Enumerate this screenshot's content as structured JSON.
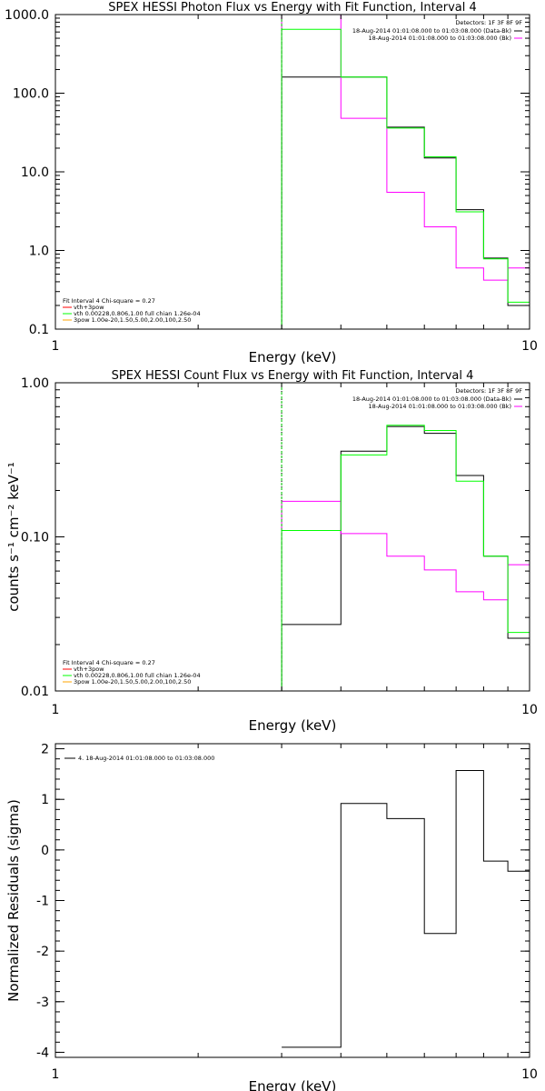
{
  "chart_data": [
    {
      "type": "line",
      "title": "SPEX HESSI Photon Flux vs Energy with Fit Function, Interval 4",
      "xlabel": "Energy (keV)",
      "ylabel": "",
      "xscale": "log",
      "yscale": "log",
      "xlim": [
        1,
        10
      ],
      "ylim": [
        0.1,
        1000
      ],
      "x_tick_labels": [
        "1",
        "10"
      ],
      "y_tick_labels": [
        "0.1",
        "1.0",
        "10.0",
        "100.0",
        "1000.0"
      ],
      "legend_header": "Detectors: 1F 3F 8F 9F",
      "legend_data": [
        {
          "label": "18-Aug-2014 01:01:08.000 to 01:03:08.000 (Data-Bk)",
          "color": "#000000"
        },
        {
          "label": "18-Aug-2014 01:01:08.000 to 01:03:08.000 (Bk)",
          "color": "#ff00ff"
        }
      ],
      "fit_legend": [
        {
          "label": "Fit Interval 4   Chi-square = 0.27",
          "color": "#000000"
        },
        {
          "label": "vth+3pow",
          "color": "#ff0000"
        },
        {
          "label": "vth 0.00228,0.806,1.00   full chian 1.26e-04",
          "color": "#00ff00"
        },
        {
          "label": "3pow 1.00e-20,1.50,5.00,2.00,100,2.50",
          "color": "#ffa500"
        }
      ],
      "energy_edges": [
        3,
        4,
        5,
        6,
        7,
        8,
        9,
        10
      ],
      "series": [
        {
          "name": "18-Aug-2014 01:01:08.000 to 01:03:08.000 (Data-Bk)",
          "color": "#000000",
          "values": [
            160,
            160,
            37,
            15,
            3.3,
            0.8,
            0.2
          ]
        },
        {
          "name": "18-Aug-2014 01:01:08.000 to 01:03:08.000 (Bk)",
          "color": "#ff00ff",
          "values": [
            1050,
            48,
            5.5,
            2.0,
            0.6,
            0.42,
            0.6
          ]
        },
        {
          "name": "vth 0.00228,0.806,1.00   full chian 1.26e-04",
          "color": "#00ff00",
          "values": [
            650,
            160,
            36,
            15.5,
            3.1,
            0.78,
            0.22
          ]
        }
      ],
      "fit_low_energy_marker": 3
    },
    {
      "type": "line",
      "title": "SPEX HESSI Count Flux vs Energy with Fit Function, Interval 4",
      "xlabel": "Energy (keV)",
      "ylabel": "counts s⁻¹ cm⁻² keV⁻¹",
      "xscale": "log",
      "yscale": "log",
      "xlim": [
        1,
        10
      ],
      "ylim": [
        0.01,
        1
      ],
      "x_tick_labels": [
        "1",
        "10"
      ],
      "y_tick_labels": [
        "0.01",
        "0.10",
        "1.00"
      ],
      "legend_header": "Detectors: 1F 3F 8F 9F",
      "legend_data": [
        {
          "label": "18-Aug-2014 01:01:08.000 to 01:03:08.000 (Data-Bk)",
          "color": "#000000"
        },
        {
          "label": "18-Aug-2014 01:01:08.000 to 01:03:08.000 (Bk)",
          "color": "#ff00ff"
        }
      ],
      "fit_legend": [
        {
          "label": "Fit Interval 4   Chi-square = 0.27",
          "color": "#000000"
        },
        {
          "label": "vth+3pow",
          "color": "#ff0000"
        },
        {
          "label": "vth 0.00228,0.806,1.00   full chian 1.26e-04",
          "color": "#00ff00"
        },
        {
          "label": "3pow 1.00e-20,1.50,5.00,2.00,100,2.50",
          "color": "#ffa500"
        }
      ],
      "energy_edges": [
        3,
        4,
        5,
        6,
        7,
        8,
        9,
        10
      ],
      "series": [
        {
          "name": "18-Aug-2014 01:01:08.000 to 01:03:08.000 (Data-Bk)",
          "color": "#000000",
          "values": [
            0.027,
            0.36,
            0.52,
            0.47,
            0.25,
            0.075,
            0.022
          ]
        },
        {
          "name": "18-Aug-2014 01:01:08.000 to 01:03:08.000 (Bk)",
          "color": "#ff00ff",
          "values": [
            0.17,
            0.105,
            0.075,
            0.061,
            0.044,
            0.039,
            0.066
          ]
        },
        {
          "name": "vth 0.00228,0.806,1.00   full chian 1.26e-04",
          "color": "#00ff00",
          "values": [
            0.11,
            0.34,
            0.53,
            0.49,
            0.23,
            0.075,
            0.024
          ]
        }
      ],
      "fit_low_energy_marker": 3
    },
    {
      "type": "line",
      "title": "",
      "xlabel": "Energy (keV)",
      "ylabel": "Normalized Residuals (sigma)",
      "xscale": "log",
      "yscale": "linear",
      "xlim": [
        1,
        10
      ],
      "ylim": [
        -4.1,
        2.1
      ],
      "x_tick_labels": [
        "1",
        "10"
      ],
      "y_ticks": [
        -4,
        -3,
        -2,
        -1,
        0,
        1,
        2
      ],
      "legend": [
        {
          "label": "4. 18-Aug-2014 01:01:08.000 to 01:03:08.000",
          "color": "#000000"
        }
      ],
      "energy_edges": [
        3,
        4,
        5,
        6,
        7,
        8,
        9,
        10
      ],
      "series": [
        {
          "name": "4. 18-Aug-2014 01:01:08.000 to 01:03:08.000",
          "color": "#000000",
          "values": [
            -3.9,
            0.92,
            0.62,
            -1.65,
            1.57,
            -0.22,
            -0.42
          ]
        }
      ]
    }
  ]
}
